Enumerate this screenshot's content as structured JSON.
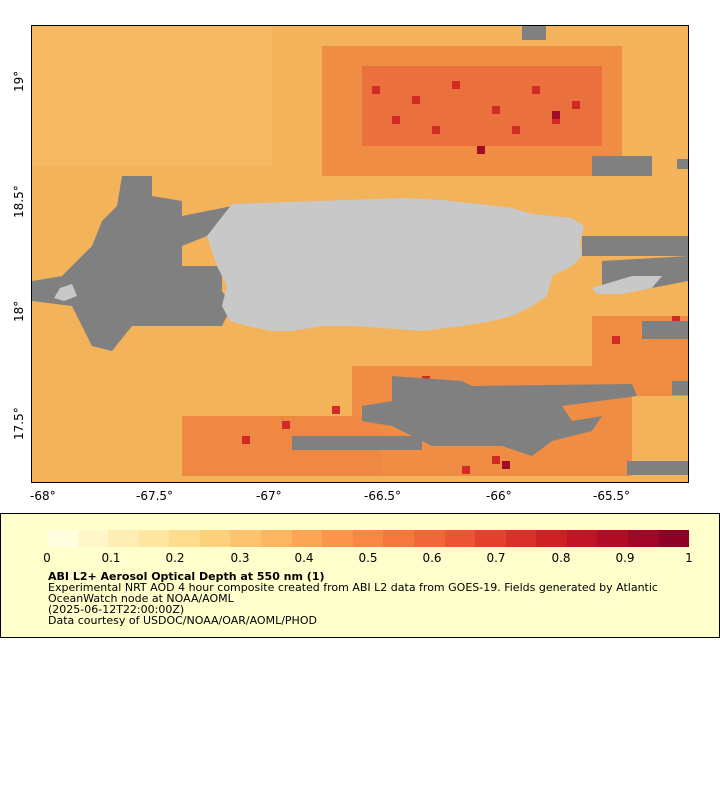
{
  "map": {
    "x_ticks": [
      "-68°",
      "-67.5°",
      "-67°",
      "-66.5°",
      "-66°",
      "-65.5°"
    ],
    "y_ticks": [
      "19°",
      "18.5°",
      "18°",
      "17.5°"
    ],
    "colors": {
      "background_aod": "#f3b35b",
      "no_data": "#808080",
      "land": "#c8c8c8",
      "frame": "#000000"
    }
  },
  "legend": {
    "scale_labels": [
      "0",
      "0.1",
      "0.2",
      "0.3",
      "0.4",
      "0.5",
      "0.6",
      "0.7",
      "0.8",
      "0.9",
      "1"
    ],
    "title": "ABI L2+ Aerosol Optical Depth at 550 nm (1)",
    "line1": "Experimental NRT AOD 4 hour composite created from ABI L2 data from GOES-19. Fields generated by Atlantic",
    "line2": "OceanWatch node at NOAA/AOML",
    "line3": "(2025-06-12T22:00:00Z)",
    "line4": "Data courtesy of USDOC/NOAA/OAR/AOML/PHOD",
    "colorbar_colors": [
      "#ffffe0",
      "#fff6c9",
      "#ffeeb4",
      "#fee6a0",
      "#fddc8e",
      "#fdd07d",
      "#fdc46f",
      "#fcb662",
      "#fca656",
      "#fc964c",
      "#fb8645",
      "#f8773f",
      "#f36639",
      "#ed5434",
      "#e5412e",
      "#db302a",
      "#cf2026",
      "#c11426",
      "#b20c26",
      "#a20626",
      "#900026"
    ]
  }
}
